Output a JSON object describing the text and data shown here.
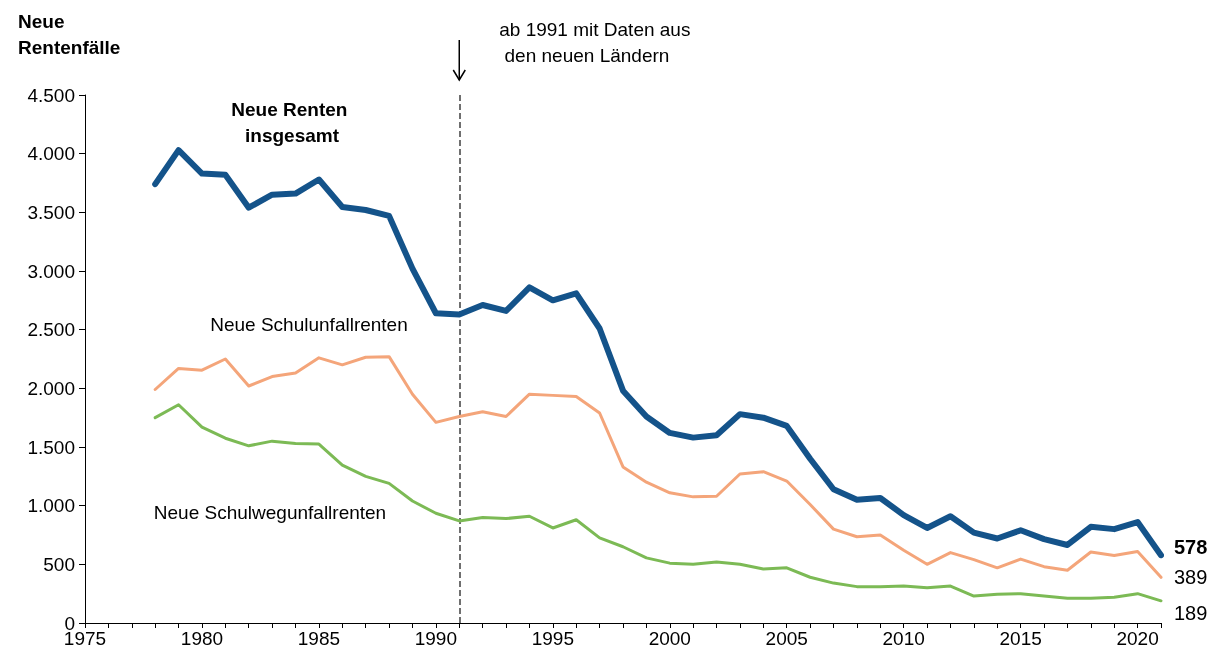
{
  "chart_data": {
    "type": "line",
    "ylabel": "Neue Rentenfälle",
    "x": [
      1978,
      1979,
      1980,
      1981,
      1982,
      1983,
      1984,
      1985,
      1986,
      1987,
      1988,
      1989,
      1990,
      1991,
      1992,
      1993,
      1994,
      1995,
      1996,
      1997,
      1998,
      1999,
      2000,
      2001,
      2002,
      2003,
      2004,
      2005,
      2006,
      2007,
      2008,
      2009,
      2010,
      2011,
      2012,
      2013,
      2014,
      2015,
      2016,
      2017,
      2018,
      2019,
      2020,
      2021
    ],
    "series": [
      {
        "name": "Neue Renten insgesamt",
        "color": "#14538a",
        "values": [
          3740,
          4030,
          3830,
          3820,
          3540,
          3650,
          3660,
          3780,
          3545,
          3520,
          3470,
          3020,
          2640,
          2630,
          2710,
          2660,
          2860,
          2750,
          2810,
          2510,
          1980,
          1760,
          1620,
          1580,
          1600,
          1780,
          1750,
          1680,
          1400,
          1140,
          1050,
          1065,
          920,
          810,
          910,
          770,
          720,
          790,
          715,
          665,
          820,
          800,
          860,
          578
        ],
        "value_labels": [
          null,
          null,
          null,
          null,
          null,
          null,
          null,
          null,
          null,
          null,
          null,
          null,
          null,
          null,
          null,
          null,
          null,
          null,
          null,
          null,
          null,
          null,
          null,
          null,
          null,
          null,
          null,
          null,
          null,
          null,
          null,
          null,
          null,
          null,
          null,
          null,
          null,
          null,
          null,
          null,
          null,
          null,
          null,
          "578"
        ]
      },
      {
        "name": "Neue Schulunfallrenten",
        "color": "#f4a57a",
        "values": [
          1990,
          2170,
          2155,
          2250,
          2020,
          2100,
          2130,
          2260,
          2200,
          2265,
          2270,
          1950,
          1710,
          1760,
          1800,
          1760,
          1950,
          1940,
          1930,
          1790,
          1330,
          1200,
          1110,
          1075,
          1080,
          1270,
          1290,
          1210,
          1010,
          800,
          735,
          750,
          620,
          500,
          600,
          540,
          470,
          545,
          480,
          450,
          605,
          575,
          610,
          389
        ],
        "value_labels": [
          null,
          null,
          null,
          null,
          null,
          null,
          null,
          null,
          null,
          null,
          null,
          null,
          null,
          null,
          null,
          null,
          null,
          null,
          null,
          null,
          null,
          null,
          null,
          null,
          null,
          null,
          null,
          null,
          null,
          null,
          null,
          null,
          null,
          null,
          null,
          null,
          null,
          null,
          null,
          null,
          null,
          null,
          null,
          "389"
        ]
      },
      {
        "name": "Neue Schulwegunfallrenten",
        "color": "#7cba55",
        "values": [
          1750,
          1860,
          1670,
          1575,
          1510,
          1550,
          1530,
          1525,
          1345,
          1250,
          1190,
          1040,
          935,
          870,
          900,
          890,
          910,
          810,
          880,
          725,
          650,
          555,
          510,
          500,
          520,
          500,
          460,
          470,
          390,
          340,
          310,
          310,
          315,
          300,
          315,
          230,
          245,
          250,
          230,
          210,
          210,
          220,
          250,
          189
        ],
        "value_labels": [
          null,
          null,
          null,
          null,
          null,
          null,
          null,
          null,
          null,
          null,
          null,
          null,
          null,
          null,
          null,
          null,
          null,
          null,
          null,
          null,
          null,
          null,
          null,
          null,
          null,
          null,
          null,
          null,
          null,
          null,
          null,
          null,
          null,
          null,
          null,
          null,
          null,
          null,
          null,
          null,
          null,
          null,
          null,
          "189"
        ]
      }
    ],
    "xlim": [
      1975,
      2021
    ],
    "xticks": [
      1975,
      1980,
      1985,
      1990,
      1995,
      2000,
      2005,
      2010,
      2015,
      2020
    ],
    "ylim": [
      0,
      4500
    ],
    "yticks": [
      0,
      500,
      {
        "value": 1000,
        "label": "1.000"
      },
      {
        "value": 1500,
        "label": "1.500"
      },
      {
        "value": 2000,
        "label": "2.000"
      },
      {
        "value": 2500,
        "label": "2.500"
      },
      {
        "value": 3000,
        "label": "3.000"
      },
      {
        "value": 3500,
        "label": "3.500"
      },
      {
        "value": 4000,
        "label": "4.000"
      },
      {
        "value": 4500,
        "label": "4.500"
      }
    ],
    "ref_lines": [
      {
        "axis": "x",
        "value": 1991,
        "label": "ab 1991 mit Daten aus den neuen Ländern",
        "line_style": "dashed",
        "color": "#404040"
      }
    ],
    "grid": false,
    "legend": false,
    "marker": "none",
    "line_style": "solid"
  }
}
